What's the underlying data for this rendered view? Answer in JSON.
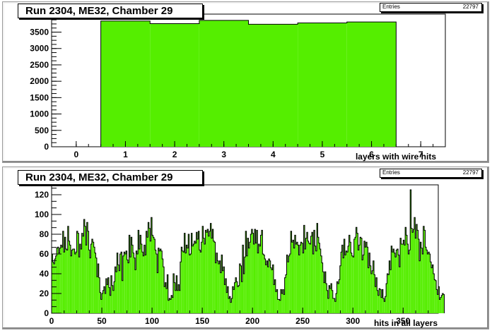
{
  "chart_data": [
    {
      "type": "bar",
      "title": "Run 2304, ME32, Chamber 29",
      "stats": {
        "label": "Entries",
        "value": "22797"
      },
      "xlabel": "layers with wire hits",
      "ylabel": "",
      "xlim": [
        -0.5,
        7.5
      ],
      "ylim": [
        0,
        4050
      ],
      "x_ticks": [
        0,
        1,
        2,
        3,
        4,
        5,
        6,
        7
      ],
      "y_ticks": [
        0,
        500,
        1000,
        1500,
        2000,
        2500,
        3000,
        3500,
        4000
      ],
      "bin_width": 1,
      "categories": [
        1,
        2,
        3,
        4,
        5,
        6
      ],
      "values": [
        3840,
        3760,
        3860,
        3740,
        3780,
        3810
      ],
      "fill_color": "#55ee00",
      "grid": false
    },
    {
      "type": "bar",
      "title": "Run 2304, ME32, Chamber 29",
      "stats": {
        "label": "Entries",
        "value": "22797"
      },
      "xlabel": "hits in all layers",
      "ylabel": "",
      "xlim": [
        0,
        385
      ],
      "ylim": [
        0,
        130
      ],
      "x_ticks": [
        0,
        50,
        100,
        150,
        200,
        250,
        300,
        350
      ],
      "y_ticks": [
        0,
        20,
        40,
        60,
        80,
        100,
        120
      ],
      "bin_width": 1,
      "x_start": 0,
      "values": [
        60,
        52,
        50,
        55,
        58,
        66,
        67,
        61,
        66,
        69,
        67,
        83,
        62,
        77,
        65,
        64,
        88,
        73,
        69,
        58,
        64,
        65,
        65,
        60,
        62,
        83,
        81,
        57,
        70,
        65,
        81,
        78,
        95,
        88,
        69,
        92,
        83,
        64,
        56,
        70,
        75,
        72,
        67,
        61,
        56,
        37,
        50,
        36,
        21,
        14,
        20,
        23,
        27,
        20,
        35,
        29,
        36,
        26,
        18,
        38,
        28,
        23,
        32,
        47,
        42,
        61,
        49,
        43,
        60,
        62,
        33,
        58,
        62,
        60,
        63,
        54,
        51,
        79,
        57,
        77,
        69,
        61,
        56,
        44,
        63,
        60,
        84,
        65,
        79,
        70,
        62,
        58,
        69,
        59,
        83,
        77,
        92,
        86,
        73,
        97,
        79,
        77,
        75,
        64,
        60,
        41,
        66,
        63,
        65,
        63,
        55,
        47,
        27,
        31,
        25,
        39,
        13,
        15,
        14,
        18,
        16,
        40,
        31,
        23,
        38,
        23,
        29,
        23,
        52,
        67,
        63,
        62,
        81,
        61,
        69,
        66,
        80,
        59,
        60,
        81,
        68,
        70,
        73,
        71,
        82,
        75,
        83,
        64,
        62,
        72,
        88,
        76,
        70,
        84,
        82,
        85,
        78,
        83,
        91,
        76,
        85,
        73,
        72,
        51,
        61,
        53,
        50,
        53,
        41,
        59,
        43,
        47,
        29,
        35,
        21,
        27,
        15,
        17,
        11,
        15,
        27,
        24,
        31,
        36,
        32,
        27,
        28,
        50,
        48,
        32,
        69,
        40,
        57,
        83,
        58,
        76,
        66,
        72,
        80,
        85,
        81,
        70,
        85,
        71,
        84,
        61,
        70,
        68,
        79,
        84,
        60,
        59,
        55,
        49,
        53,
        47,
        55,
        53,
        46,
        44,
        49,
        29,
        34,
        22,
        24,
        14,
        14,
        13,
        24,
        20,
        24,
        19,
        36,
        39,
        59,
        52,
        58,
        60,
        83,
        72,
        74,
        66,
        79,
        70,
        72,
        69,
        59,
        69,
        72,
        71,
        61,
        89,
        65,
        76,
        82,
        73,
        71,
        70,
        78,
        82,
        60,
        84,
        68,
        63,
        91,
        77,
        71,
        65,
        58,
        51,
        42,
        31,
        42,
        30,
        23,
        15,
        28,
        25,
        30,
        23,
        15,
        15,
        12,
        20,
        32,
        30,
        34,
        48,
        62,
        69,
        56,
        75,
        59,
        63,
        62,
        68,
        79,
        72,
        61,
        58,
        57,
        75,
        77,
        87,
        81,
        64,
        69,
        77,
        76,
        54,
        59,
        73,
        67,
        72,
        67,
        46,
        61,
        48,
        40,
        43,
        53,
        39,
        27,
        36,
        23,
        18,
        25,
        24,
        16,
        24,
        15,
        12,
        17,
        30,
        40,
        39,
        53,
        44,
        68,
        62,
        65,
        61,
        57,
        64,
        65,
        59,
        47,
        76,
        70,
        70,
        74,
        69,
        87,
        79,
        70,
        60,
        64,
        125,
        86,
        82,
        85,
        97,
        76,
        90,
        84,
        75,
        53,
        72,
        66,
        60,
        88,
        84,
        67,
        64,
        60,
        62,
        60,
        52,
        46,
        49,
        40,
        34,
        33,
        24,
        19,
        27,
        14,
        16,
        18,
        20,
        19
      ],
      "fill_color": "#55ee00",
      "grid": false
    }
  ]
}
